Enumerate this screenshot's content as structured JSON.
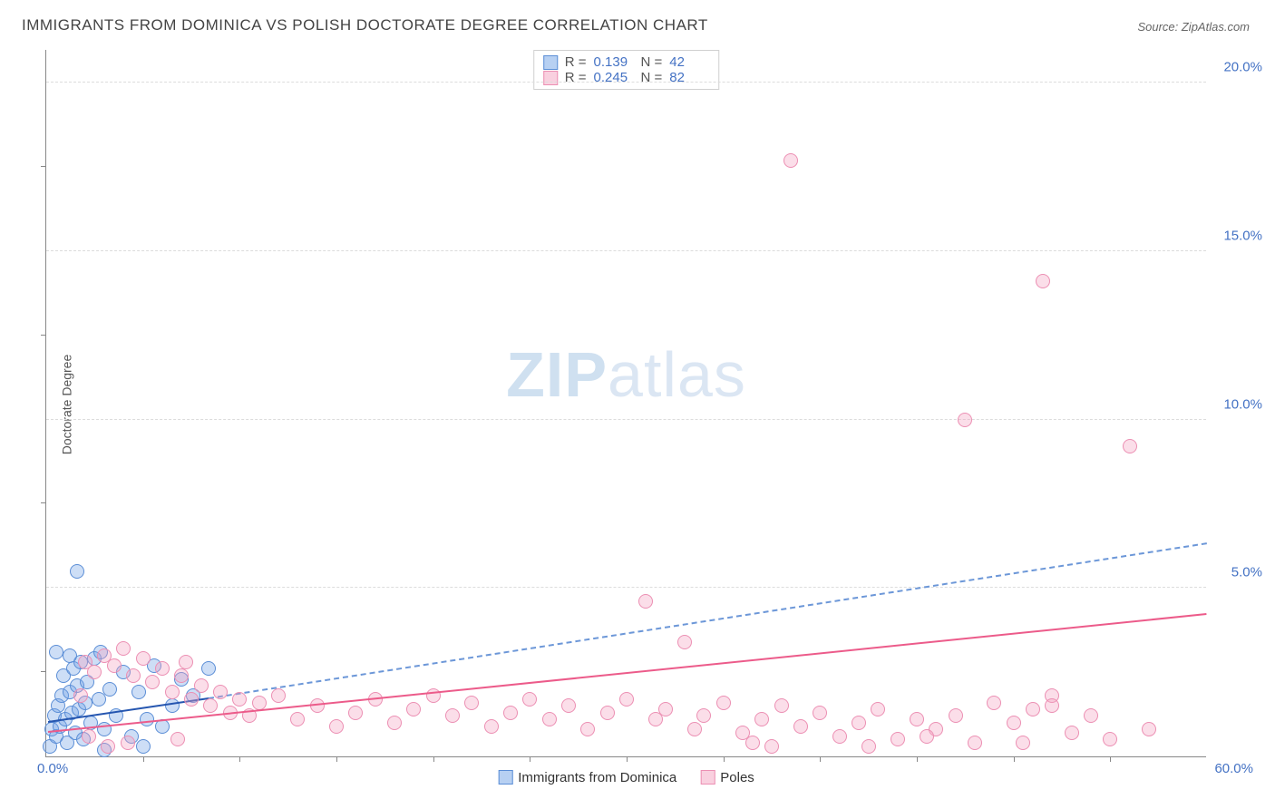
{
  "title": "IMMIGRANTS FROM DOMINICA VS POLISH DOCTORATE DEGREE CORRELATION CHART",
  "source": "Source: ZipAtlas.com",
  "ylabel": "Doctorate Degree",
  "watermark_zip": "ZIP",
  "watermark_atlas": "atlas",
  "chart": {
    "type": "scatter",
    "xlim": [
      0,
      60
    ],
    "ylim": [
      0,
      21
    ],
    "yticks": [
      5,
      10,
      15,
      20
    ],
    "ytick_labels": [
      "5.0%",
      "10.0%",
      "15.0%",
      "20.0%"
    ],
    "xtick_marks": [
      5,
      10,
      15,
      20,
      25,
      30,
      35,
      40,
      45,
      50,
      55
    ],
    "ytick_marks": [
      2.5,
      7.5,
      12.5,
      17.5
    ],
    "x0_label": "0.0%",
    "y60_label": "60.0%",
    "background_color": "#ffffff",
    "grid_color": "#dcdcdc",
    "marker_size": 16,
    "series": [
      {
        "name": "Immigrants from Dominica",
        "color_fill": "rgba(112,161,230,0.35)",
        "color_stroke": "#5b8ed6",
        "R_label": "R =",
        "R": "0.139",
        "N_label": "N =",
        "N": "42",
        "trend": {
          "x1": 0.1,
          "y1": 1.0,
          "x2": 8.4,
          "y2": 1.7,
          "color": "#2556b0",
          "dash_x2": 60,
          "dash_y2": 6.3,
          "dash_color": "#6c97d8"
        },
        "points": [
          [
            0.2,
            0.3
          ],
          [
            0.3,
            0.8
          ],
          [
            0.4,
            1.2
          ],
          [
            0.5,
            0.6
          ],
          [
            0.6,
            1.5
          ],
          [
            0.7,
            0.9
          ],
          [
            0.8,
            1.8
          ],
          [
            0.9,
            2.4
          ],
          [
            1.0,
            1.1
          ],
          [
            1.1,
            0.4
          ],
          [
            1.2,
            1.9
          ],
          [
            1.3,
            1.3
          ],
          [
            1.4,
            2.6
          ],
          [
            1.5,
            0.7
          ],
          [
            1.6,
            2.1
          ],
          [
            1.7,
            1.4
          ],
          [
            1.8,
            2.8
          ],
          [
            1.9,
            0.5
          ],
          [
            2.0,
            1.6
          ],
          [
            2.1,
            2.2
          ],
          [
            2.3,
            1.0
          ],
          [
            2.5,
            2.9
          ],
          [
            2.7,
            1.7
          ],
          [
            3.0,
            0.8
          ],
          [
            3.3,
            2.0
          ],
          [
            3.6,
            1.2
          ],
          [
            4.0,
            2.5
          ],
          [
            4.4,
            0.6
          ],
          [
            4.8,
            1.9
          ],
          [
            5.2,
            1.1
          ],
          [
            5.6,
            2.7
          ],
          [
            6.0,
            0.9
          ],
          [
            6.5,
            1.5
          ],
          [
            7.0,
            2.3
          ],
          [
            7.6,
            1.8
          ],
          [
            8.4,
            2.6
          ],
          [
            1.6,
            5.5
          ],
          [
            0.5,
            3.1
          ],
          [
            1.2,
            3.0
          ],
          [
            2.8,
            3.1
          ],
          [
            3.0,
            0.2
          ],
          [
            5.0,
            0.3
          ]
        ]
      },
      {
        "name": "Poles",
        "color_fill": "rgba(244,161,191,0.35)",
        "color_stroke": "#ec8fb3",
        "R_label": "R =",
        "R": "0.245",
        "N_label": "N =",
        "N": "82",
        "trend": {
          "x1": 0.1,
          "y1": 0.7,
          "x2": 60,
          "y2": 4.2,
          "color": "#ec5b8a"
        },
        "points": [
          [
            2.0,
            2.8
          ],
          [
            2.5,
            2.5
          ],
          [
            3.0,
            3.0
          ],
          [
            3.5,
            2.7
          ],
          [
            4.0,
            3.2
          ],
          [
            4.5,
            2.4
          ],
          [
            5.0,
            2.9
          ],
          [
            5.5,
            2.2
          ],
          [
            6.0,
            2.6
          ],
          [
            6.5,
            1.9
          ],
          [
            7.0,
            2.4
          ],
          [
            7.5,
            1.7
          ],
          [
            8.0,
            2.1
          ],
          [
            8.5,
            1.5
          ],
          [
            9.0,
            1.9
          ],
          [
            9.5,
            1.3
          ],
          [
            10.0,
            1.7
          ],
          [
            10.5,
            1.2
          ],
          [
            11.0,
            1.6
          ],
          [
            12.0,
            1.8
          ],
          [
            13.0,
            1.1
          ],
          [
            14.0,
            1.5
          ],
          [
            15.0,
            0.9
          ],
          [
            16.0,
            1.3
          ],
          [
            17.0,
            1.7
          ],
          [
            18.0,
            1.0
          ],
          [
            19.0,
            1.4
          ],
          [
            20.0,
            1.8
          ],
          [
            21.0,
            1.2
          ],
          [
            22.0,
            1.6
          ],
          [
            23.0,
            0.9
          ],
          [
            24.0,
            1.3
          ],
          [
            25.0,
            1.7
          ],
          [
            26.0,
            1.1
          ],
          [
            27.0,
            1.5
          ],
          [
            28.0,
            0.8
          ],
          [
            29.0,
            1.3
          ],
          [
            30.0,
            1.7
          ],
          [
            31.0,
            4.6
          ],
          [
            31.5,
            1.1
          ],
          [
            32.0,
            1.4
          ],
          [
            33.0,
            3.4
          ],
          [
            33.5,
            0.8
          ],
          [
            34.0,
            1.2
          ],
          [
            35.0,
            1.6
          ],
          [
            36.0,
            0.7
          ],
          [
            37.0,
            1.1
          ],
          [
            37.5,
            0.3
          ],
          [
            38.0,
            1.5
          ],
          [
            39.0,
            0.9
          ],
          [
            40.0,
            1.3
          ],
          [
            41.0,
            0.6
          ],
          [
            42.0,
            1.0
          ],
          [
            43.0,
            1.4
          ],
          [
            44.0,
            0.5
          ],
          [
            45.0,
            1.1
          ],
          [
            46.0,
            0.8
          ],
          [
            47.0,
            1.2
          ],
          [
            48.0,
            0.4
          ],
          [
            49.0,
            1.6
          ],
          [
            50.0,
            1.0
          ],
          [
            51.0,
            1.4
          ],
          [
            52.0,
            1.8
          ],
          [
            53.0,
            0.7
          ],
          [
            54.0,
            1.2
          ],
          [
            55.0,
            0.5
          ],
          [
            57.0,
            0.8
          ],
          [
            38.5,
            17.7
          ],
          [
            47.5,
            10.0
          ],
          [
            51.5,
            14.1
          ],
          [
            56.0,
            9.2
          ],
          [
            52.0,
            1.5
          ],
          [
            50.5,
            0.4
          ],
          [
            45.5,
            0.6
          ],
          [
            42.5,
            0.3
          ],
          [
            36.5,
            0.4
          ],
          [
            7.2,
            2.8
          ],
          [
            6.8,
            0.5
          ],
          [
            4.2,
            0.4
          ],
          [
            3.2,
            0.3
          ],
          [
            2.2,
            0.6
          ],
          [
            1.8,
            1.8
          ]
        ]
      }
    ]
  },
  "legend_bottom": {
    "items": [
      {
        "swatch": "blue",
        "label": "Immigrants from Dominica"
      },
      {
        "swatch": "pink",
        "label": "Poles"
      }
    ]
  }
}
